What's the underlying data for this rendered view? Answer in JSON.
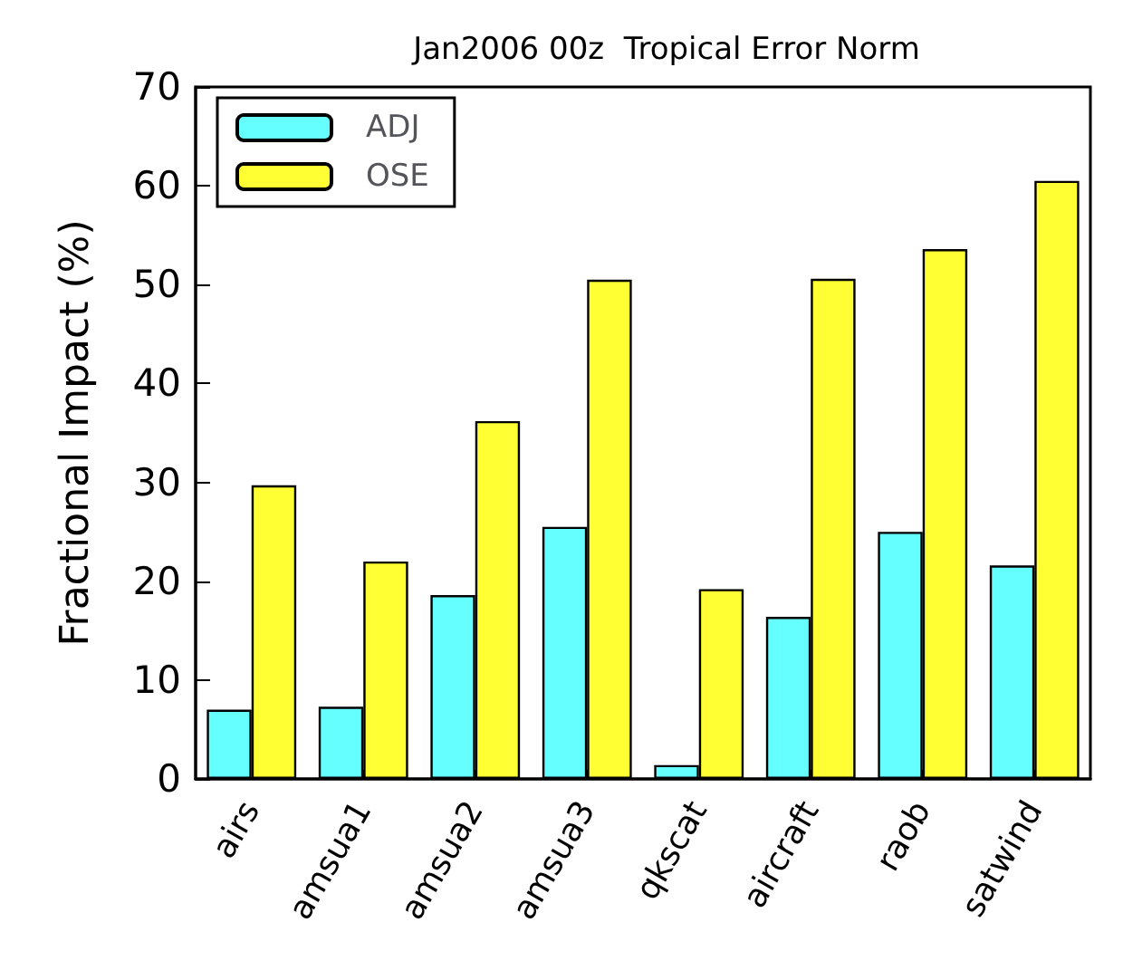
{
  "chart_data": {
    "type": "bar",
    "title": "Jan2006 00z  Tropical Error Norm",
    "ylabel": "Fractional Impact (%)",
    "categories": [
      "airs",
      "amsua1",
      "amsua2",
      "amsua3",
      "qkscat",
      "aircraft",
      "raob",
      "satwind"
    ],
    "series": [
      {
        "name": "ADJ",
        "color": "#66ffff",
        "values": [
          7.0,
          7.3,
          18.6,
          25.5,
          1.4,
          16.4,
          25.0,
          21.6
        ]
      },
      {
        "name": "OSE",
        "color": "#ffff33",
        "values": [
          29.7,
          22.0,
          36.2,
          50.5,
          19.2,
          50.6,
          53.6,
          60.5
        ]
      }
    ],
    "ylim": [
      0,
      70
    ],
    "yticks": [
      0,
      10,
      20,
      30,
      40,
      50,
      60,
      70
    ],
    "grid": false,
    "legend": "top left"
  }
}
